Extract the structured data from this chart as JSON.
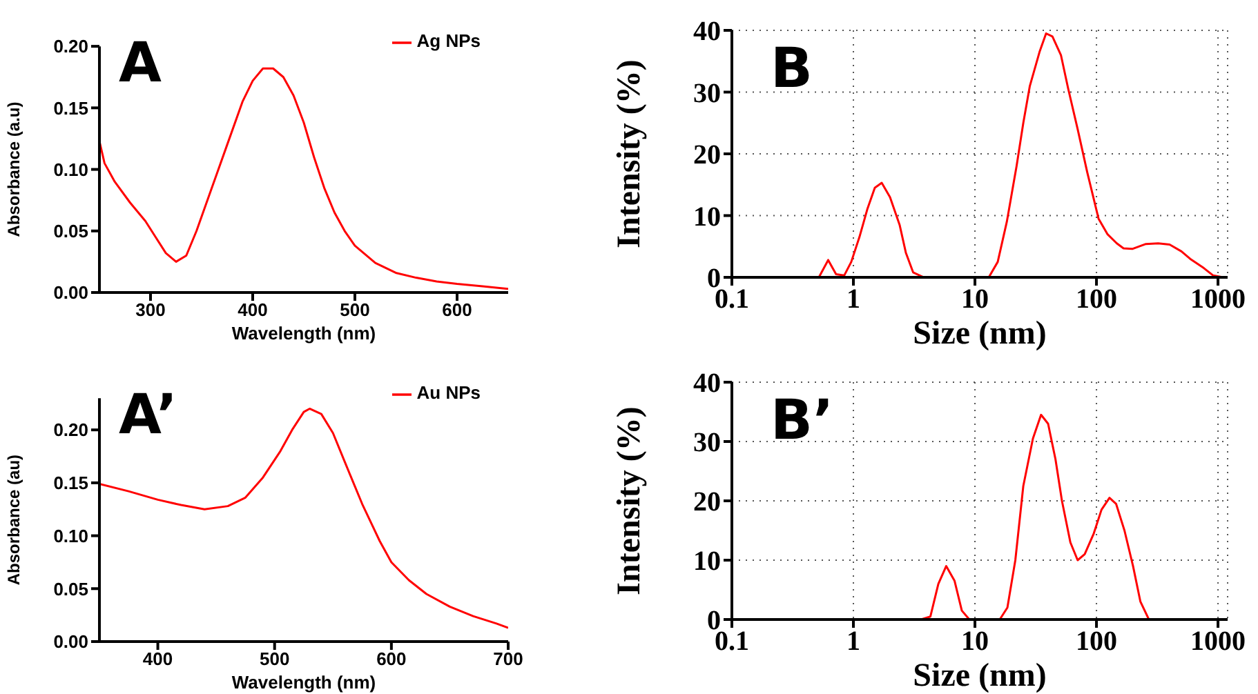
{
  "chart_data": [
    {
      "type": "line",
      "xlabel": "Wavelength (nm)",
      "ylabel": "Absorbance (a.u)",
      "annotations": [
        "A"
      ],
      "legend": "top right",
      "xlim": [
        250,
        650
      ],
      "xticks": [
        300,
        400,
        500,
        600
      ],
      "ylim": [
        0,
        0.2
      ],
      "yticks": [
        {
          "value": 0,
          "label": "0.00"
        },
        {
          "value": 0.05,
          "label": "0.05"
        },
        {
          "value": 0.1,
          "label": "0.10"
        },
        {
          "value": 0.15,
          "label": "0.15"
        },
        {
          "value": 0.2,
          "label": "0.20"
        }
      ],
      "series": [
        {
          "name": "Ag NPs",
          "color": "#ff0000",
          "x": [
            250,
            255,
            265,
            280,
            295,
            305,
            315,
            325,
            335,
            345,
            360,
            375,
            390,
            400,
            410,
            420,
            430,
            440,
            450,
            460,
            470,
            480,
            490,
            500,
            520,
            540,
            560,
            580,
            600,
            625,
            650
          ],
          "values": [
            0.123,
            0.105,
            0.09,
            0.073,
            0.058,
            0.045,
            0.032,
            0.025,
            0.03,
            0.05,
            0.085,
            0.12,
            0.155,
            0.172,
            0.182,
            0.182,
            0.175,
            0.16,
            0.138,
            0.11,
            0.085,
            0.065,
            0.05,
            0.038,
            0.024,
            0.016,
            0.012,
            0.009,
            0.007,
            0.005,
            0.003
          ]
        }
      ]
    },
    {
      "type": "line",
      "xlabel": "Size (nm)",
      "ylabel": "Intensity (%)",
      "annotations": [
        "B"
      ],
      "log": "x",
      "grid": true,
      "xlim": [
        0.1,
        1200
      ],
      "xticks": [
        0.1,
        1,
        10,
        100,
        1000
      ],
      "ylim": [
        0,
        40
      ],
      "yticks": [
        0,
        10,
        20,
        30,
        40
      ],
      "series": [
        {
          "color": "#ff0000",
          "x": [
            0.4,
            0.52,
            0.62,
            0.72,
            0.84,
            0.96,
            1.12,
            1.3,
            1.5,
            1.71,
            2.0,
            2.4,
            2.7,
            3.1,
            3.8,
            13,
            15.4,
            18.3,
            22,
            25,
            28.3,
            34,
            38.5,
            43.4,
            51,
            58.6,
            70,
            84,
            104,
            123,
            147,
            167,
            197,
            255,
            322,
            400,
            500,
            590,
            764,
            913,
            1100,
            1200
          ],
          "values": [
            0,
            0,
            2.8,
            0.5,
            0.3,
            2.5,
            6.5,
            11,
            14.5,
            15.3,
            13,
            8.5,
            4,
            0.8,
            0,
            0,
            2.5,
            9,
            18,
            25,
            31,
            36.5,
            39.5,
            39,
            36,
            30.5,
            24,
            17,
            9.5,
            7,
            5.5,
            4.7,
            4.6,
            5.4,
            5.5,
            5.3,
            4.2,
            3,
            1.5,
            0.3,
            0,
            0
          ]
        }
      ]
    },
    {
      "type": "line",
      "xlabel": "Wavelength (nm)",
      "ylabel": "Absorbance (au)",
      "annotations": [
        "A’"
      ],
      "legend": "top right",
      "xlim": [
        350,
        700
      ],
      "xticks": [
        400,
        500,
        600,
        700
      ],
      "ylim": [
        0,
        0.23
      ],
      "yticks": [
        {
          "value": 0,
          "label": "0.00"
        },
        {
          "value": 0.05,
          "label": "0.05"
        },
        {
          "value": 0.1,
          "label": "0.10"
        },
        {
          "value": 0.15,
          "label": "0.15"
        },
        {
          "value": 0.2,
          "label": "0.20"
        }
      ],
      "series": [
        {
          "name": "Au NPs",
          "color": "#ff0000",
          "x": [
            350,
            375,
            400,
            420,
            440,
            460,
            475,
            490,
            505,
            515,
            525,
            530,
            540,
            550,
            560,
            575,
            590,
            600,
            615,
            630,
            650,
            670,
            690,
            700
          ],
          "values": [
            0.149,
            0.142,
            0.134,
            0.129,
            0.125,
            0.128,
            0.136,
            0.155,
            0.18,
            0.2,
            0.217,
            0.22,
            0.215,
            0.197,
            0.17,
            0.13,
            0.095,
            0.075,
            0.058,
            0.045,
            0.033,
            0.024,
            0.017,
            0.013
          ]
        }
      ]
    },
    {
      "type": "line",
      "xlabel": "Size (nm)",
      "ylabel": "Intensity (%)",
      "annotations": [
        "B’"
      ],
      "log": "x",
      "grid": true,
      "xlim": [
        0.1,
        1200
      ],
      "xticks": [
        0.1,
        1,
        10,
        100,
        1000
      ],
      "ylim": [
        0,
        40
      ],
      "yticks": [
        0,
        10,
        20,
        30,
        40
      ],
      "series": [
        {
          "color": "#ff0000",
          "x": [
            0.4,
            3.6,
            4.3,
            5.0,
            5.8,
            6.8,
            7.8,
            9,
            16,
            18.5,
            21.5,
            25,
            30,
            35,
            40,
            46,
            52,
            61,
            70,
            80,
            95,
            110,
            128,
            145,
            170,
            200,
            230,
            270,
            1200
          ],
          "values": [
            0,
            0,
            0.5,
            6,
            9,
            6.5,
            1.5,
            0,
            0,
            2,
            10,
            22.5,
            30.5,
            34.5,
            33,
            27,
            20,
            13,
            10,
            11,
            14.5,
            18.5,
            20.5,
            19.5,
            15,
            9,
            3,
            0,
            0
          ]
        }
      ]
    }
  ]
}
